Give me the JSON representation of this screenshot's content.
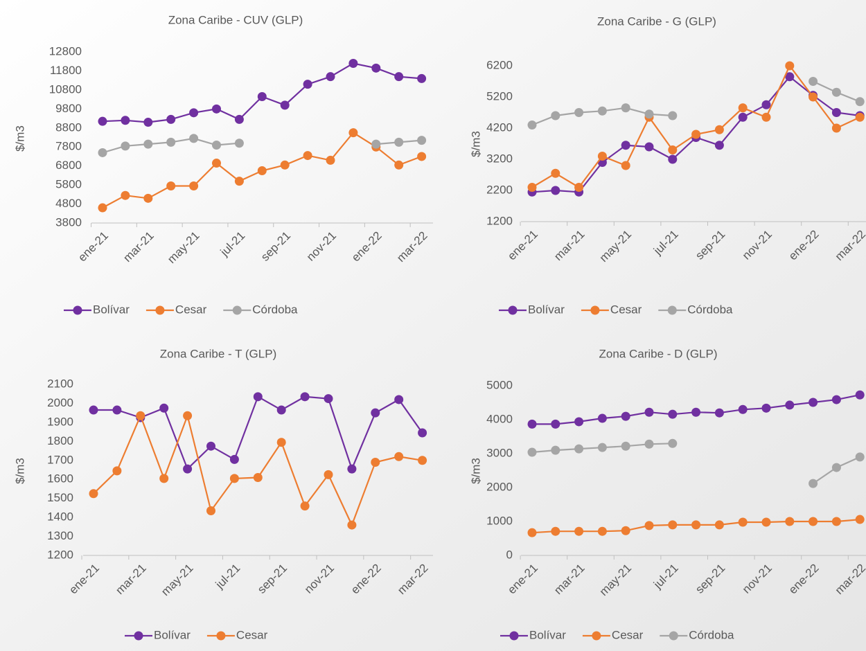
{
  "chart_data": [
    {
      "type": "line",
      "title": "Zona Caribe - CUV (GLP)",
      "y_label": "$/m3",
      "categories": [
        "ene-21",
        null,
        "mar-21",
        null,
        "may-21",
        null,
        "jul-21",
        null,
        "sep-21",
        null,
        "nov-21",
        null,
        "ene-22",
        null,
        "mar-22"
      ],
      "series": [
        {
          "name": "Bolívar",
          "color": "#7030a0",
          "values": [
            9150,
            9200,
            9100,
            9250,
            9600,
            9800,
            9250,
            10450,
            10000,
            11100,
            11500,
            12200,
            11950,
            11500,
            11400
          ]
        },
        {
          "name": "Cesar",
          "color": "#ed7d31",
          "values": [
            4600,
            5250,
            5100,
            5750,
            5750,
            6950,
            6000,
            6550,
            6850,
            7350,
            7100,
            8550,
            7800,
            6850,
            7300
          ]
        },
        {
          "name": "Córdoba",
          "color": "#a5a5a5",
          "values": [
            7500,
            7850,
            7950,
            8050,
            8250,
            7900,
            8000,
            null,
            null,
            null,
            null,
            null,
            7950,
            8050,
            8150
          ]
        }
      ],
      "ylim": [
        3800,
        12800
      ],
      "yticks": [
        3800,
        4800,
        5800,
        6800,
        7800,
        8800,
        9800,
        10800,
        11800,
        12800
      ]
    },
    {
      "type": "line",
      "title": "Zona Caribe - G (GLP)",
      "y_label": "$/m3",
      "categories": [
        "ene-21",
        null,
        "mar-21",
        null,
        "may-21",
        null,
        "jul-21",
        null,
        "sep-21",
        null,
        "nov-21",
        null,
        "ene-22",
        null,
        "mar-22"
      ],
      "series": [
        {
          "name": "Bolívar",
          "color": "#7030a0",
          "values": [
            2150,
            2200,
            2150,
            3100,
            3650,
            3600,
            3200,
            3900,
            3650,
            4550,
            4950,
            5850,
            5250,
            4700,
            4600
          ]
        },
        {
          "name": "Cesar",
          "color": "#ed7d31",
          "values": [
            2300,
            2750,
            2300,
            3300,
            3000,
            4550,
            3500,
            4000,
            4150,
            4850,
            4550,
            6200,
            5200,
            4200,
            4550
          ]
        },
        {
          "name": "Córdoba",
          "color": "#a5a5a5",
          "values": [
            4300,
            4600,
            4700,
            4750,
            4850,
            4650,
            4600,
            null,
            null,
            null,
            null,
            null,
            5700,
            5350,
            5050
          ]
        }
      ],
      "ylim": [
        1200,
        6200
      ],
      "yticks": [
        1200,
        2200,
        3200,
        4200,
        5200,
        6200
      ]
    },
    {
      "type": "line",
      "title": "Zona Caribe - T (GLP)",
      "y_label": "$/m3",
      "categories": [
        "ene-21",
        null,
        "mar-21",
        null,
        "may-21",
        null,
        "jul-21",
        null,
        "sep-21",
        null,
        "nov-21",
        null,
        "ene-22",
        null,
        "mar-22"
      ],
      "series": [
        {
          "name": "Bolívar",
          "color": "#7030a0",
          "values": [
            1965,
            1965,
            1925,
            1975,
            1655,
            1775,
            1705,
            2035,
            1965,
            2035,
            2025,
            1655,
            1950,
            2020,
            1845
          ]
        },
        {
          "name": "Cesar",
          "color": "#ed7d31",
          "values": [
            1525,
            1645,
            1935,
            1605,
            1935,
            1435,
            1605,
            1610,
            1795,
            1460,
            1625,
            1360,
            1690,
            1720,
            1700
          ]
        }
      ],
      "ylim": [
        1200,
        2100
      ],
      "yticks": [
        1200,
        1300,
        1400,
        1500,
        1600,
        1700,
        1800,
        1900,
        2000,
        2100
      ]
    },
    {
      "type": "line",
      "title": "Zona Caribe - D (GLP)",
      "y_label": "$/m3",
      "categories": [
        "ene-21",
        null,
        "mar-21",
        null,
        "may-21",
        null,
        "jul-21",
        null,
        "sep-21",
        null,
        "nov-21",
        null,
        "ene-22",
        null,
        "mar-22"
      ],
      "series": [
        {
          "name": "Bolívar",
          "color": "#7030a0",
          "values": [
            3870,
            3870,
            3940,
            4040,
            4100,
            4220,
            4160,
            4220,
            4200,
            4300,
            4340,
            4430,
            4510,
            4590,
            4730
          ]
        },
        {
          "name": "Cesar",
          "color": "#ed7d31",
          "values": [
            670,
            710,
            710,
            710,
            730,
            880,
            900,
            900,
            900,
            980,
            980,
            1000,
            1000,
            1000,
            1060
          ]
        },
        {
          "name": "Córdoba",
          "color": "#a5a5a5",
          "values": [
            3040,
            3100,
            3140,
            3180,
            3220,
            3280,
            3300,
            null,
            null,
            null,
            null,
            null,
            2120,
            2590,
            2900
          ]
        }
      ],
      "ylim": [
        0,
        5000
      ],
      "yticks": [
        0,
        1000,
        2000,
        3000,
        4000,
        5000
      ]
    }
  ]
}
